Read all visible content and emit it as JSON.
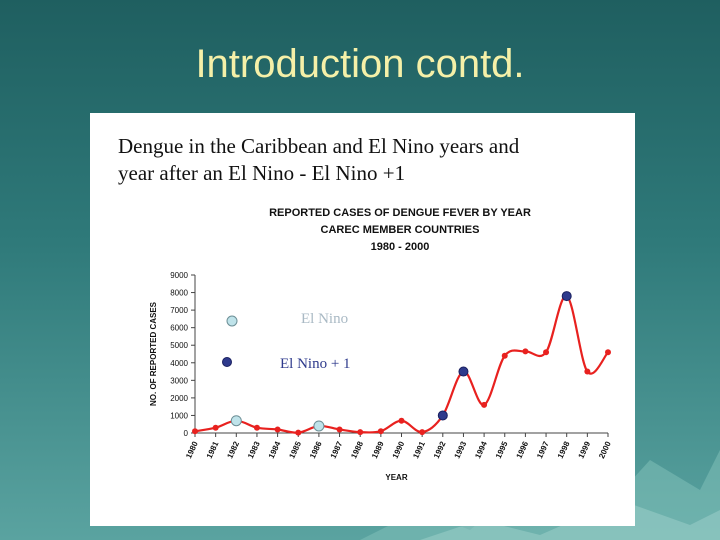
{
  "slide": {
    "title": "Introduction contd."
  },
  "panel": {
    "heading_line1": "Dengue in the Caribbean and El Nino years and",
    "heading_line2": "year after an El Nino - El Nino +1"
  },
  "colors": {
    "series_line": "#e8211f",
    "el_nino_marker": "#bfe3ea",
    "el_nino_plus_1_marker": "#2e3a8c",
    "title_text": "#f5f0a8",
    "background": "#2f7a7a"
  },
  "chart_data": {
    "type": "line",
    "title_lines": [
      "REPORTED CASES OF DENGUE FEVER BY YEAR",
      "CAREC MEMBER COUNTRIES",
      "1980 - 2000"
    ],
    "xlabel": "YEAR",
    "ylabel": "NO. OF REPORTED CASES",
    "ylim": [
      0,
      9000
    ],
    "yticks": [
      0,
      1000,
      2000,
      3000,
      4000,
      5000,
      6000,
      7000,
      8000,
      9000
    ],
    "categories": [
      "1980",
      "1981",
      "1982",
      "1983",
      "1984",
      "1985",
      "1986",
      "1987",
      "1988",
      "1989",
      "1990",
      "1991",
      "1992",
      "1993",
      "1994",
      "1995",
      "1996",
      "1997",
      "1998",
      "1999",
      "2000"
    ],
    "series": [
      {
        "values": [
          100,
          300,
          700,
          300,
          200,
          20,
          400,
          200,
          50,
          100,
          700,
          50,
          1000,
          3500,
          1600,
          4400,
          4650,
          4600,
          7800,
          3500,
          4600
        ]
      }
    ],
    "legend": [
      {
        "label": "El Nino",
        "marker": "el_nino"
      },
      {
        "label": "El Nino + 1",
        "marker": "el_nino_plus_1"
      }
    ],
    "el_nino_years": [
      "1982",
      "1986"
    ],
    "el_nino_plus_1_years": [
      "1992",
      "1993",
      "1998"
    ],
    "grid": false
  }
}
